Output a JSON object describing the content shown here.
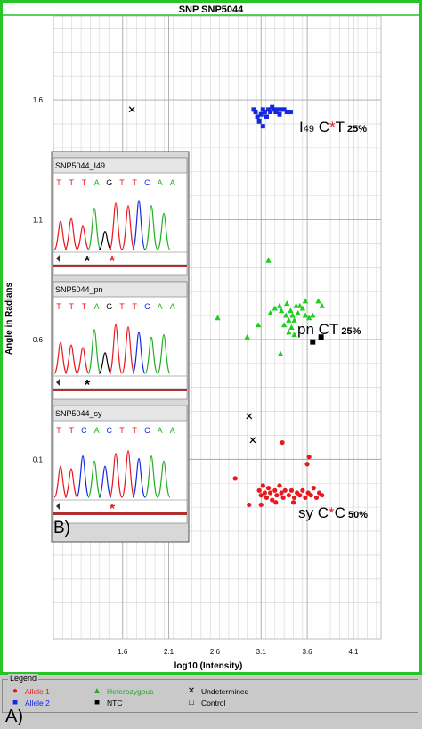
{
  "chart_data": {
    "type": "scatter",
    "title": "SNP SNP5044",
    "xlabel": "log10 (Intensity)",
    "ylabel": "Angle in Radians",
    "xlim": [
      0.85,
      4.4
    ],
    "ylim": [
      -0.65,
      1.95
    ],
    "xticks": [
      "1.6",
      "2.1",
      "2.6",
      "3.1",
      "3.6",
      "4.1"
    ],
    "yticks": [
      "0.1",
      "0.6",
      "1.1",
      "1.6"
    ],
    "grid": true,
    "series": [
      {
        "name": "Allele 1",
        "color": "#e8181c",
        "marker": "circle",
        "points": [
          [
            3.08,
            -0.03
          ],
          [
            3.1,
            -0.05
          ],
          [
            3.12,
            -0.01
          ],
          [
            3.14,
            -0.04
          ],
          [
            3.16,
            -0.06
          ],
          [
            3.18,
            -0.02
          ],
          [
            3.2,
            -0.04
          ],
          [
            3.22,
            -0.07
          ],
          [
            3.25,
            -0.03
          ],
          [
            3.27,
            -0.05
          ],
          [
            3.3,
            -0.01
          ],
          [
            3.32,
            -0.04
          ],
          [
            3.34,
            -0.06
          ],
          [
            3.36,
            -0.03
          ],
          [
            3.4,
            -0.05
          ],
          [
            3.43,
            -0.03
          ],
          [
            3.46,
            -0.06
          ],
          [
            3.49,
            -0.04
          ],
          [
            3.52,
            -0.05
          ],
          [
            3.55,
            -0.03
          ],
          [
            3.58,
            -0.06
          ],
          [
            3.61,
            -0.04
          ],
          [
            3.64,
            -0.05
          ],
          [
            3.67,
            -0.02
          ],
          [
            3.7,
            -0.06
          ],
          [
            3.73,
            -0.04
          ],
          [
            3.76,
            -0.05
          ],
          [
            3.1,
            -0.09
          ],
          [
            3.26,
            -0.08
          ],
          [
            3.45,
            -0.08
          ],
          [
            2.82,
            0.02
          ],
          [
            2.97,
            -0.09
          ],
          [
            3.33,
            0.17
          ],
          [
            3.62,
            0.11
          ],
          [
            3.6,
            0.08
          ]
        ]
      },
      {
        "name": "Allele 2",
        "color": "#1428e0",
        "marker": "square",
        "points": [
          [
            3.02,
            1.56
          ],
          [
            3.04,
            1.55
          ],
          [
            3.06,
            1.53
          ],
          [
            3.08,
            1.51
          ],
          [
            3.1,
            1.54
          ],
          [
            3.12,
            1.56
          ],
          [
            3.14,
            1.55
          ],
          [
            3.16,
            1.53
          ],
          [
            3.18,
            1.56
          ],
          [
            3.2,
            1.55
          ],
          [
            3.22,
            1.57
          ],
          [
            3.24,
            1.56
          ],
          [
            3.26,
            1.55
          ],
          [
            3.28,
            1.56
          ],
          [
            3.3,
            1.54
          ],
          [
            3.32,
            1.56
          ],
          [
            3.35,
            1.56
          ],
          [
            3.38,
            1.55
          ],
          [
            3.42,
            1.55
          ],
          [
            3.12,
            1.49
          ]
        ]
      },
      {
        "name": "Heterozygous",
        "color": "#22cc22",
        "marker": "triangle",
        "points": [
          [
            2.63,
            0.69
          ],
          [
            2.95,
            0.61
          ],
          [
            3.07,
            0.66
          ],
          [
            3.18,
            0.93
          ],
          [
            3.2,
            0.71
          ],
          [
            3.25,
            0.73
          ],
          [
            3.3,
            0.74
          ],
          [
            3.31,
            0.54
          ],
          [
            3.32,
            0.72
          ],
          [
            3.35,
            0.66
          ],
          [
            3.37,
            0.7
          ],
          [
            3.38,
            0.75
          ],
          [
            3.4,
            0.68
          ],
          [
            3.42,
            0.72
          ],
          [
            3.43,
            0.65
          ],
          [
            3.44,
            0.7
          ],
          [
            3.46,
            0.68
          ],
          [
            3.48,
            0.74
          ],
          [
            3.5,
            0.71
          ],
          [
            3.52,
            0.74
          ],
          [
            3.55,
            0.73
          ],
          [
            3.58,
            0.7
          ],
          [
            3.62,
            0.69
          ],
          [
            3.66,
            0.7
          ],
          [
            3.72,
            0.76
          ],
          [
            3.76,
            0.74
          ],
          [
            3.58,
            0.76
          ],
          [
            3.46,
            0.62
          ],
          [
            3.4,
            0.63
          ]
        ]
      },
      {
        "name": "Undetermined",
        "color": "#000000",
        "marker": "x",
        "points": [
          [
            1.7,
            1.56
          ],
          [
            2.97,
            0.28
          ],
          [
            3.01,
            0.18
          ]
        ]
      },
      {
        "name": "NTC",
        "color": "#000000",
        "marker": "filled-square",
        "points": [
          [
            3.66,
            0.59
          ],
          [
            3.75,
            0.61
          ]
        ]
      }
    ],
    "annotations": [
      {
        "parts": [
          {
            "t": "I",
            "c": "#000000",
            "s": 17
          },
          {
            "t": "49",
            "c": "#000000",
            "s": 11
          },
          {
            "t": "  C",
            "c": "#000000",
            "s": 17
          },
          {
            "t": "*",
            "c": "#e8181c",
            "s": 17
          },
          {
            "t": "T",
            "c": "#000000",
            "s": 17
          },
          {
            "t": " 25%",
            "c": "#000000",
            "s": 11,
            "b": true
          }
        ]
      },
      {
        "parts": [
          {
            "t": "pn",
            "c": "#000000",
            "s": 17
          },
          {
            "t": "  CT",
            "c": "#000000",
            "s": 17
          },
          {
            "t": "  25%",
            "c": "#000000",
            "s": 11,
            "b": true
          }
        ]
      },
      {
        "parts": [
          {
            "t": "sy",
            "c": "#000000",
            "s": 17
          },
          {
            "t": " C",
            "c": "#000000",
            "s": 17
          },
          {
            "t": "*",
            "c": "#e8181c",
            "s": 17
          },
          {
            "t": "C",
            "c": "#000000",
            "s": 17
          },
          {
            "t": " 50%",
            "c": "#000000",
            "s": 11,
            "b": true
          }
        ]
      }
    ]
  },
  "inset": {
    "panel_label": "B)",
    "traces": [
      {
        "name": "SNP5044_I49",
        "bases": [
          "T",
          "T",
          "T",
          "A",
          "G",
          "T",
          "T",
          "C",
          "A",
          "A"
        ],
        "markers": [
          {
            "sym": "*",
            "color": "#000000"
          },
          {
            "sym": "*",
            "color": "#e8181c"
          }
        ]
      },
      {
        "name": "SNP5044_pn",
        "bases": [
          "T",
          "T",
          "T",
          "A",
          "G",
          "T",
          "T",
          "C",
          "A",
          "A"
        ],
        "markers": [
          {
            "sym": "*",
            "color": "#000000"
          }
        ]
      },
      {
        "name": "SNP5044_sy",
        "bases": [
          "T",
          "T",
          "C",
          "A",
          "C",
          "T",
          "T",
          "C",
          "A",
          "A"
        ],
        "markers": [
          {
            "sym": "*",
            "color": "#e8181c"
          }
        ]
      }
    ],
    "base_colors": {
      "T": "#e8181c",
      "A": "#22b022",
      "G": "#000000",
      "C": "#1428e0"
    }
  },
  "legend": {
    "title": "Legend",
    "items": [
      {
        "label": "Allele 1",
        "color": "#e8181c",
        "sym": "●"
      },
      {
        "label": "Allele 2",
        "color": "#1428e0",
        "sym": "■"
      },
      {
        "label": "Heterozygous",
        "color": "#22aa22",
        "sym": "▲"
      },
      {
        "label": "NTC",
        "color": "#000000",
        "sym": "■"
      },
      {
        "label": "Undetermined",
        "color": "#000000",
        "sym": "✕"
      },
      {
        "label": "Control",
        "color": "#000000",
        "sym": "□"
      }
    ]
  },
  "panel_label_a": "A)"
}
